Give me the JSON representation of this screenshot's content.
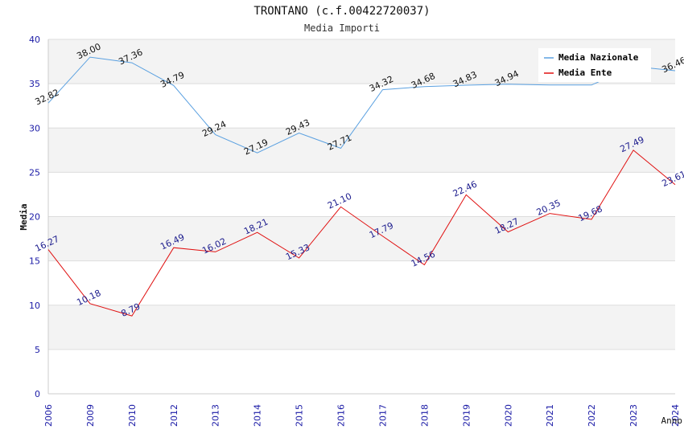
{
  "chart_data": {
    "type": "line",
    "title": "TRONTANO (c.f.00422720037)",
    "subtitle": "Media Importi",
    "xlabel": "Anno",
    "ylabel": "Media",
    "ylim": [
      0,
      40
    ],
    "yticks": [
      0,
      5,
      10,
      15,
      20,
      25,
      30,
      35,
      40
    ],
    "grid": true,
    "legend_position": "top-right",
    "categories": [
      "2006",
      "2009",
      "2010",
      "2012",
      "2013",
      "2014",
      "2015",
      "2016",
      "2017",
      "2018",
      "2019",
      "2020",
      "2021",
      "2022",
      "2023",
      "2024"
    ],
    "series": [
      {
        "name": "Media Nazionale",
        "color": "#5aa0e0",
        "values": [
          32.82,
          38.0,
          37.36,
          34.79,
          29.24,
          27.19,
          29.43,
          27.71,
          34.32,
          34.68,
          34.83,
          34.94,
          34.85,
          34.85,
          36.95,
          36.46
        ],
        "labels": [
          "32.82",
          "38.00",
          "37.36",
          "34.79",
          "29.24",
          "27.19",
          "29.43",
          "27.71",
          "34.32",
          "34.68",
          "34.83",
          "34.94",
          "",
          "",
          "",
          "36.46"
        ]
      },
      {
        "name": "Media Ente",
        "color": "#e01010",
        "values": [
          16.27,
          10.18,
          8.79,
          16.49,
          16.02,
          18.21,
          15.33,
          21.1,
          17.79,
          14.56,
          22.46,
          18.27,
          20.35,
          19.68,
          27.49,
          23.61
        ],
        "labels": [
          "16.27",
          "10.18",
          "8.79",
          "16.49",
          "16.02",
          "18.21",
          "15.33",
          "21.10",
          "17.79",
          "14.56",
          "22.46",
          "18.27",
          "20.35",
          "19.68",
          "27.49",
          "23.61"
        ]
      }
    ]
  }
}
